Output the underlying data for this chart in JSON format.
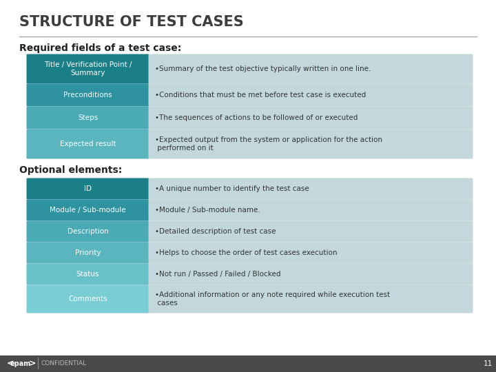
{
  "title": "STRUCTURE OF TEST CASES",
  "bg_color": "#ffffff",
  "title_color": "#3d3d3d",
  "footer_bg": "#4a4a4a",
  "footer_text": "CONFIDENTIAL",
  "footer_page": "11",
  "section1_label": "Required fields of a test case:",
  "section2_label": "Optional elements:",
  "required_rows": [
    {
      "label": "Title / Verification Point /\nSummary",
      "desc": "•Summary of the test objective typically written in one line.",
      "label_color": "#1b7f88",
      "desc_color": "#c2d8dc"
    },
    {
      "label": "Preconditions",
      "desc": "•Conditions that must be met before test case is executed",
      "label_color": "#2e92a0",
      "desc_color": "#c2d8dc"
    },
    {
      "label": "Steps",
      "desc": "•The sequences of actions to be followed of or executed",
      "label_color": "#4aaab5",
      "desc_color": "#c2d8dc"
    },
    {
      "label": "Expected result",
      "desc": "•Expected output from the system or application for the action\n performed on it",
      "label_color": "#5ab5be",
      "desc_color": "#c2d8dc"
    }
  ],
  "optional_rows": [
    {
      "label": "ID",
      "desc": "•A unique number to identify the test case",
      "label_color": "#1b7f88",
      "desc_color": "#c2d8dc"
    },
    {
      "label": "Module / Sub-module",
      "desc": "•Module / Sub-module name.",
      "label_color": "#2e92a0",
      "desc_color": "#c2d8dc"
    },
    {
      "label": "Description",
      "desc": "•Detailed description of test case",
      "label_color": "#4aaab5",
      "desc_color": "#c2d8dc"
    },
    {
      "label": "Priority",
      "desc": "•Helps to choose the order of test cases execution",
      "label_color": "#5ab5be",
      "desc_color": "#c2d8dc"
    },
    {
      "label": "Status",
      "desc": "•Not run / Passed / Failed / Blocked",
      "label_color": "#6ac0c8",
      "desc_color": "#c2d8dc"
    },
    {
      "label": "Comments",
      "desc": "•Additional information or any note required while execution test\n cases",
      "label_color": "#7acdd4",
      "desc_color": "#c2d8dc"
    }
  ]
}
